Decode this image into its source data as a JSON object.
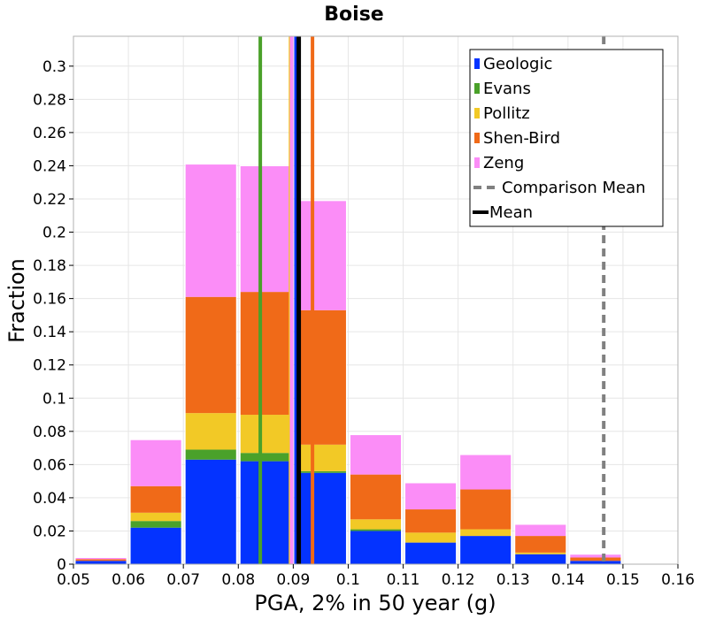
{
  "chart_data": {
    "type": "bar",
    "stacked": true,
    "title": "Boise",
    "xlabel": "PGA, 2% in 50 year (g)",
    "ylabel": "Fraction",
    "xlim": [
      0.05,
      0.16
    ],
    "ylim": [
      0,
      0.318
    ],
    "xticks": [
      "0.05",
      "0.06",
      "0.07",
      "0.08",
      "0.09",
      "0.1",
      "0.11",
      "0.12",
      "0.13",
      "0.14",
      "0.15",
      "0.16"
    ],
    "yticks": [
      "0",
      "0.02",
      "0.04",
      "0.06",
      "0.08",
      "0.1",
      "0.12",
      "0.14",
      "0.16",
      "0.18",
      "0.2",
      "0.22",
      "0.24",
      "0.26",
      "0.28",
      "0.3"
    ],
    "grid": true,
    "legend_position": "top-right",
    "bins": [
      [
        0.05,
        0.06
      ],
      [
        0.06,
        0.07
      ],
      [
        0.07,
        0.08
      ],
      [
        0.08,
        0.09
      ],
      [
        0.09,
        0.1
      ],
      [
        0.1,
        0.11
      ],
      [
        0.11,
        0.12
      ],
      [
        0.12,
        0.13
      ],
      [
        0.13,
        0.14
      ],
      [
        0.14,
        0.15
      ],
      [
        0.15,
        0.16
      ]
    ],
    "series": [
      {
        "name": "Geologic",
        "color": "#0433ff",
        "values": [
          0.002,
          0.022,
          0.063,
          0.062,
          0.055,
          0.02,
          0.013,
          0.017,
          0.006,
          0.002,
          0.0
        ]
      },
      {
        "name": "Evans",
        "color": "#4aa12a",
        "values": [
          0.0,
          0.004,
          0.006,
          0.005,
          0.001,
          0.001,
          0.0,
          0.0,
          0.0,
          0.0,
          0.0
        ]
      },
      {
        "name": "Pollitz",
        "color": "#f2c926",
        "values": [
          0.0,
          0.005,
          0.022,
          0.023,
          0.016,
          0.006,
          0.006,
          0.004,
          0.001,
          0.0,
          0.0
        ]
      },
      {
        "name": "Shen-Bird",
        "color": "#f06a18",
        "values": [
          0.001,
          0.016,
          0.07,
          0.074,
          0.081,
          0.027,
          0.014,
          0.024,
          0.01,
          0.002,
          0.0005
        ]
      },
      {
        "name": "Zeng",
        "color": "#fb8df7",
        "values": [
          0.001,
          0.028,
          0.08,
          0.076,
          0.066,
          0.024,
          0.016,
          0.021,
          0.007,
          0.002,
          0.0
        ]
      }
    ],
    "vertical_lines": [
      {
        "series": "Evans",
        "x": 0.084,
        "color": "#4aa12a",
        "style": "solid"
      },
      {
        "series": "Pollitz",
        "x": 0.0895,
        "color": "#f2c926",
        "style": "solid"
      },
      {
        "series": "Zeng",
        "x": 0.0897,
        "color": "#fb8df7",
        "style": "solid"
      },
      {
        "series": "Geologic",
        "x": 0.0905,
        "color": "#0433ff",
        "style": "solid"
      },
      {
        "series": "Mean",
        "x": 0.091,
        "color": "#000000",
        "style": "solid"
      },
      {
        "series": "Shen-Bird",
        "x": 0.0935,
        "color": "#f06a18",
        "style": "solid"
      },
      {
        "series": "Comparison Mean",
        "x": 0.1465,
        "color": "#808080",
        "style": "dashed"
      }
    ],
    "legend": [
      {
        "label": "Geologic",
        "marker": "square",
        "color": "#0433ff"
      },
      {
        "label": "Evans",
        "marker": "square",
        "color": "#4aa12a"
      },
      {
        "label": "Pollitz",
        "marker": "square",
        "color": "#f2c926"
      },
      {
        "label": "Shen-Bird",
        "marker": "square",
        "color": "#f06a18"
      },
      {
        "label": "Zeng",
        "marker": "square",
        "color": "#fb8df7"
      },
      {
        "label": "Comparison Mean",
        "marker": "dashed-line",
        "color": "#808080"
      },
      {
        "label": "Mean",
        "marker": "solid-line",
        "color": "#000000"
      }
    ]
  }
}
